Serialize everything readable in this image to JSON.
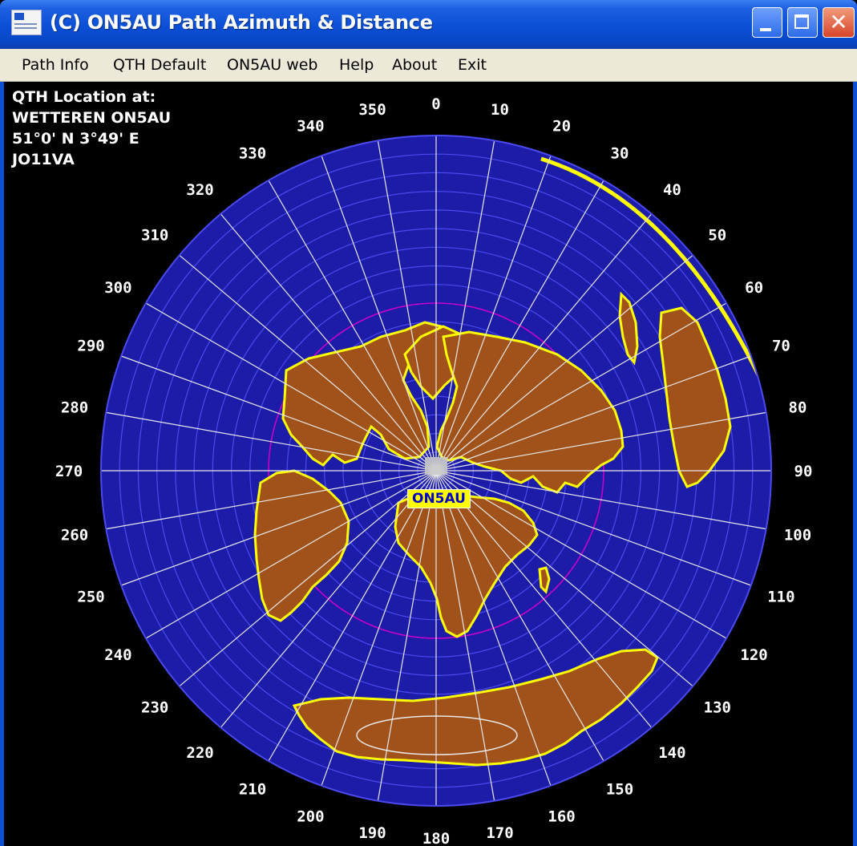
{
  "window": {
    "title": "(C) ON5AU Path Azimuth & Distance"
  },
  "menu": [
    {
      "label": "Path Info"
    },
    {
      "label": "QTH Default"
    },
    {
      "label": "ON5AU web"
    },
    {
      "label": "Help"
    },
    {
      "label": "About"
    },
    {
      "label": "Exit"
    }
  ],
  "qth": {
    "line1": "QTH Location at:",
    "line2": "WETTEREN ON5AU",
    "line3": "51°0' N 3°49' E",
    "line4": "JO11VA"
  },
  "map": {
    "center_label": "ON5AU",
    "azimuth_labels": [
      "0",
      "10",
      "20",
      "30",
      "40",
      "50",
      "60",
      "70",
      "80",
      "90",
      "100",
      "110",
      "120",
      "130",
      "140",
      "150",
      "160",
      "170",
      "180",
      "190",
      "200",
      "210",
      "220",
      "230",
      "240",
      "250",
      "260",
      "270",
      "280",
      "290",
      "300",
      "310",
      "320",
      "330",
      "340",
      "350"
    ],
    "colors": {
      "ocean": "#1c1ca8",
      "land": "#a0521a",
      "coast": "#ffff00",
      "grid": "#e8e8e8",
      "range_ring": "#4a4af0",
      "highlight_ring": "#c800c8",
      "label_bg": "#ffff00",
      "label_text": "#0000c0"
    }
  }
}
